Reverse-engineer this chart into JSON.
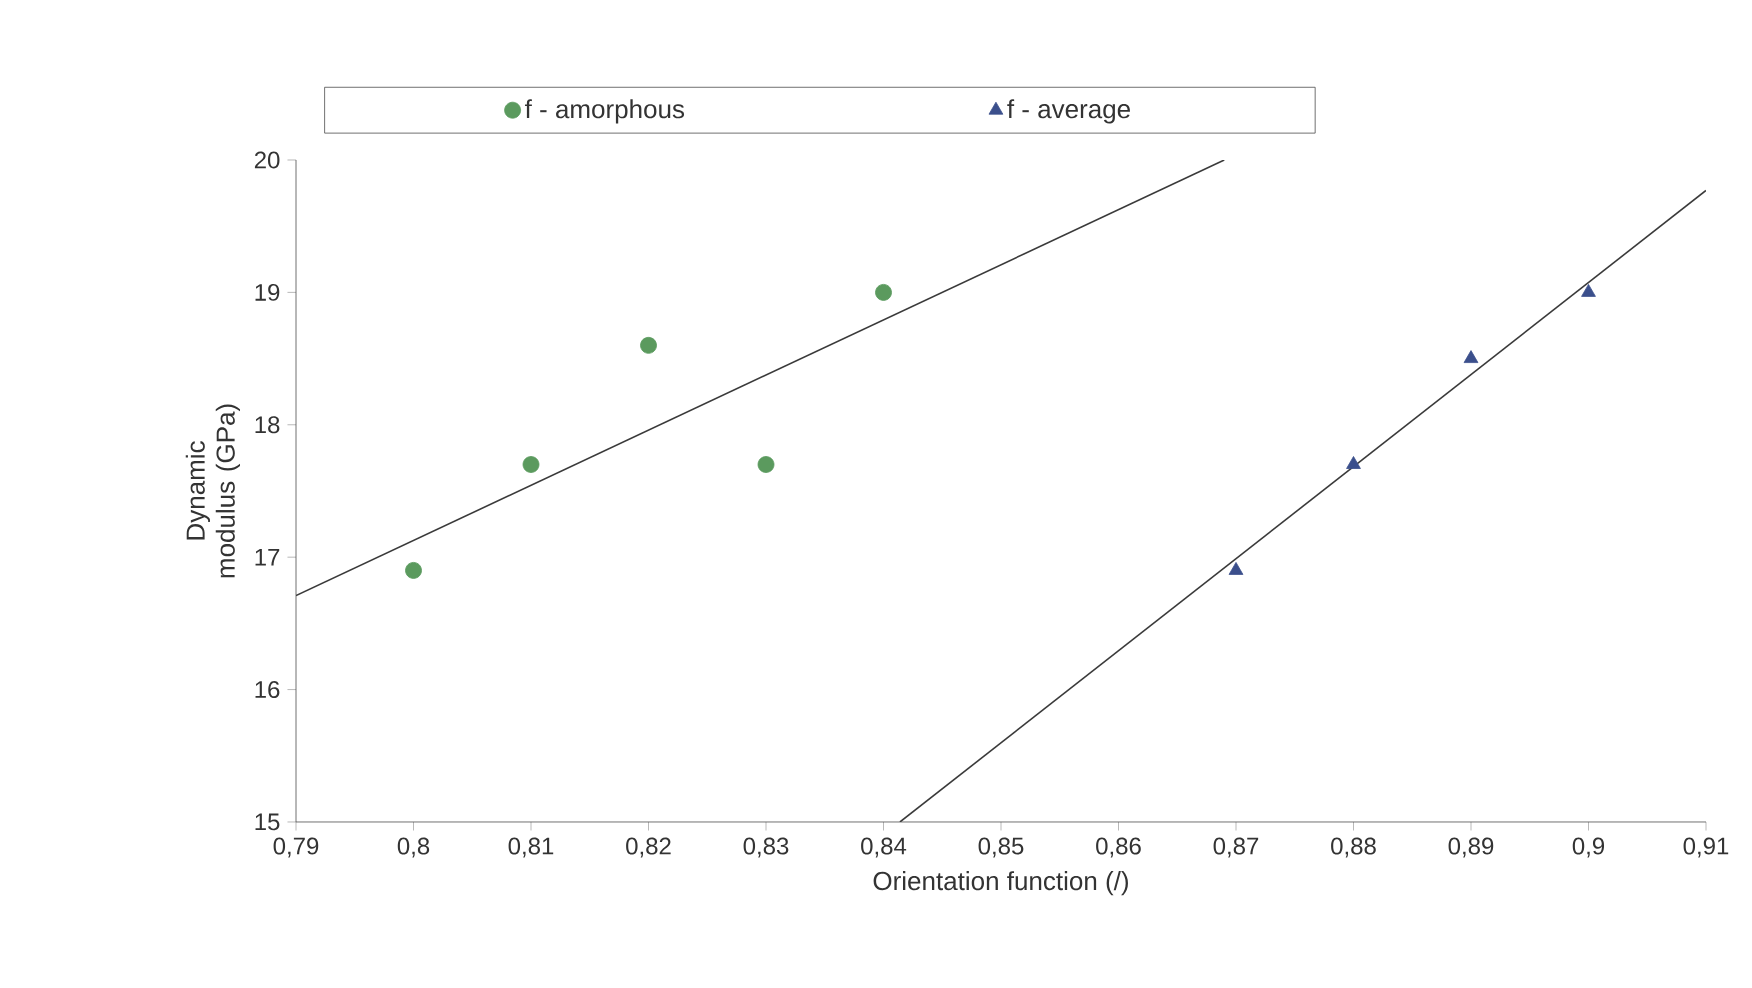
{
  "chart_data": {
    "type": "scatter",
    "xlabel": "Orientation function   (/)",
    "ylabel": "Dynamic modulus (GPa)",
    "xlim": [
      0.79,
      0.91
    ],
    "xticks": [
      {
        "value": 0.79,
        "label": "0,79"
      },
      {
        "value": 0.8,
        "label": "0,8"
      },
      {
        "value": 0.81,
        "label": "0,81"
      },
      {
        "value": 0.82,
        "label": "0,82"
      },
      {
        "value": 0.83,
        "label": "0,83"
      },
      {
        "value": 0.84,
        "label": "0,84"
      },
      {
        "value": 0.85,
        "label": "0,85"
      },
      {
        "value": 0.86,
        "label": "0,86"
      },
      {
        "value": 0.87,
        "label": "0,87"
      },
      {
        "value": 0.88,
        "label": "0,88"
      },
      {
        "value": 0.89,
        "label": "0,89"
      },
      {
        "value": 0.9,
        "label": "0,9"
      },
      {
        "value": 0.91,
        "label": "0,91"
      }
    ],
    "ylim": [
      15,
      20
    ],
    "yticks": [
      15,
      16,
      17,
      18,
      19,
      20
    ],
    "legend": "top",
    "grid": false,
    "series": [
      {
        "name": "f - amorphous",
        "type": "scatter",
        "marker": "circle",
        "color": "#5b9a5e",
        "x": [
          0.8,
          0.81,
          0.82,
          0.83,
          0.84
        ],
        "values": [
          16.9,
          17.7,
          18.6,
          17.7,
          19.0
        ]
      },
      {
        "name": "f - average",
        "type": "scatter",
        "marker": "triangle",
        "color": "#3b4f8c",
        "x": [
          0.87,
          0.88,
          0.89,
          0.9
        ],
        "values": [
          16.9,
          17.7,
          18.5,
          19.0
        ]
      },
      {
        "type": "line",
        "marker": "none",
        "color": "#3a3a3a",
        "x": [
          0.79,
          0.869
        ],
        "values": [
          16.71,
          20.0
        ]
      },
      {
        "type": "line",
        "marker": "none",
        "color": "#3a3a3a",
        "x": [
          0.8414,
          0.91
        ],
        "values": [
          15.0,
          19.77
        ]
      }
    ]
  }
}
